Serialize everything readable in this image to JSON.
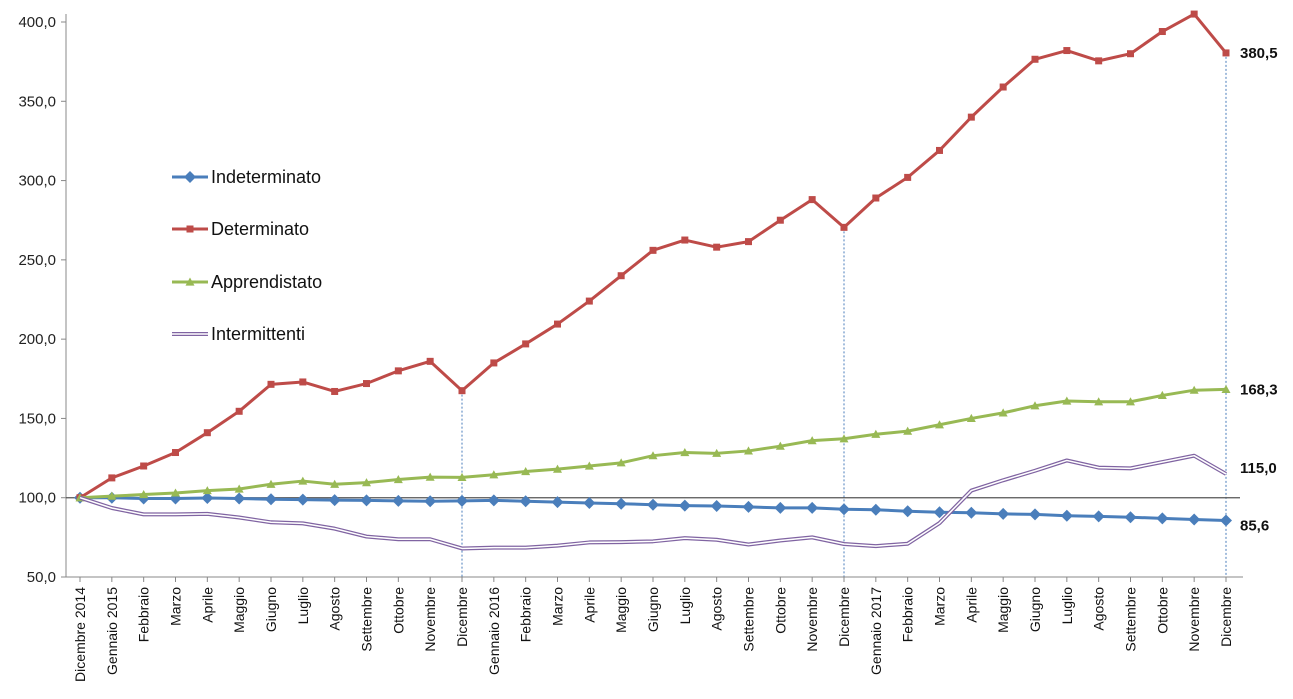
{
  "chart_data": {
    "type": "line",
    "title": "",
    "xlabel": "",
    "ylabel": "",
    "ylim": [
      50,
      400
    ],
    "yticks": [
      "50,0",
      "100,0",
      "150,0",
      "200,0",
      "250,0",
      "300,0",
      "350,0",
      "400,0"
    ],
    "categories": [
      "Dicembre 2014",
      "Gennaio 2015",
      "Febbraio",
      "Marzo",
      "Aprile",
      "Maggio",
      "Giugno",
      "Luglio",
      "Agosto",
      "Settembre",
      "Ottobre",
      "Novembre",
      "Dicembre",
      "Gennaio 2016",
      "Febbraio",
      "Marzo",
      "Aprile",
      "Maggio",
      "Giugno",
      "Luglio",
      "Agosto",
      "Settembre",
      "Ottobre",
      "Novembre",
      "Dicembre",
      "Gennaio 2017",
      "Febbraio",
      "Marzo",
      "Aprile",
      "Maggio",
      "Giugno",
      "Luglio",
      "Agosto",
      "Settembre",
      "Ottobre",
      "Novembre",
      "Dicembre"
    ],
    "reference_line": 100,
    "year_marker_indices": [
      12,
      24,
      36
    ],
    "legend_position": "left",
    "series": [
      {
        "name": "Indeterminato",
        "color": "#4a7ebb",
        "marker": "diamond",
        "values": [
          100,
          100,
          99.5,
          99.5,
          99.8,
          99.5,
          99,
          98.8,
          98.5,
          98.3,
          98,
          97.8,
          98,
          98.3,
          97.8,
          97.2,
          96.7,
          96.2,
          95.6,
          95,
          94.8,
          94.2,
          93.6,
          93.6,
          92.7,
          92.4,
          91.5,
          90.8,
          90.5,
          89.8,
          89.5,
          88.6,
          88.2,
          87.7,
          87,
          86.3,
          85.6
        ],
        "end_label": "85,6"
      },
      {
        "name": "Determinato",
        "color": "#be4b48",
        "marker": "square",
        "values": [
          100,
          112.5,
          120,
          128.5,
          141,
          154.5,
          171.5,
          173,
          167,
          172,
          180,
          186,
          167.5,
          185,
          197,
          209.5,
          224,
          240,
          256,
          262.5,
          258,
          261.5,
          275,
          288,
          270.5,
          289,
          302,
          319,
          340,
          359,
          376.5,
          382,
          375.5,
          380,
          394,
          405,
          380.5
        ],
        "end_label": "380,5"
      },
      {
        "name": "Apprendistato",
        "color": "#98b954",
        "marker": "triangle",
        "values": [
          100,
          101,
          102,
          103,
          104.5,
          105.5,
          108.5,
          110.5,
          108.5,
          109.5,
          111.5,
          113,
          112.8,
          114.5,
          116.5,
          118,
          120,
          122,
          126.5,
          128.5,
          128,
          129.5,
          132.5,
          136,
          137.2,
          140,
          142,
          146,
          150,
          153.5,
          158,
          161,
          160.5,
          160.5,
          164.5,
          167.8,
          168.3
        ],
        "end_label": "168,3"
      },
      {
        "name": "Intermittenti",
        "color": "#8064a2",
        "marker": "none",
        "values": [
          100,
          93.5,
          89.5,
          89.5,
          89.8,
          87.5,
          84.5,
          83.8,
          80.5,
          75.5,
          73.8,
          73.8,
          68,
          68.5,
          68.5,
          69.8,
          71.8,
          72,
          72.5,
          74.5,
          73.5,
          70.5,
          73,
          75,
          70.8,
          69.5,
          71,
          84,
          104.5,
          111,
          117,
          123.5,
          119,
          118.5,
          122.5,
          126.5,
          115
        ],
        "end_label": "115,0"
      }
    ]
  }
}
